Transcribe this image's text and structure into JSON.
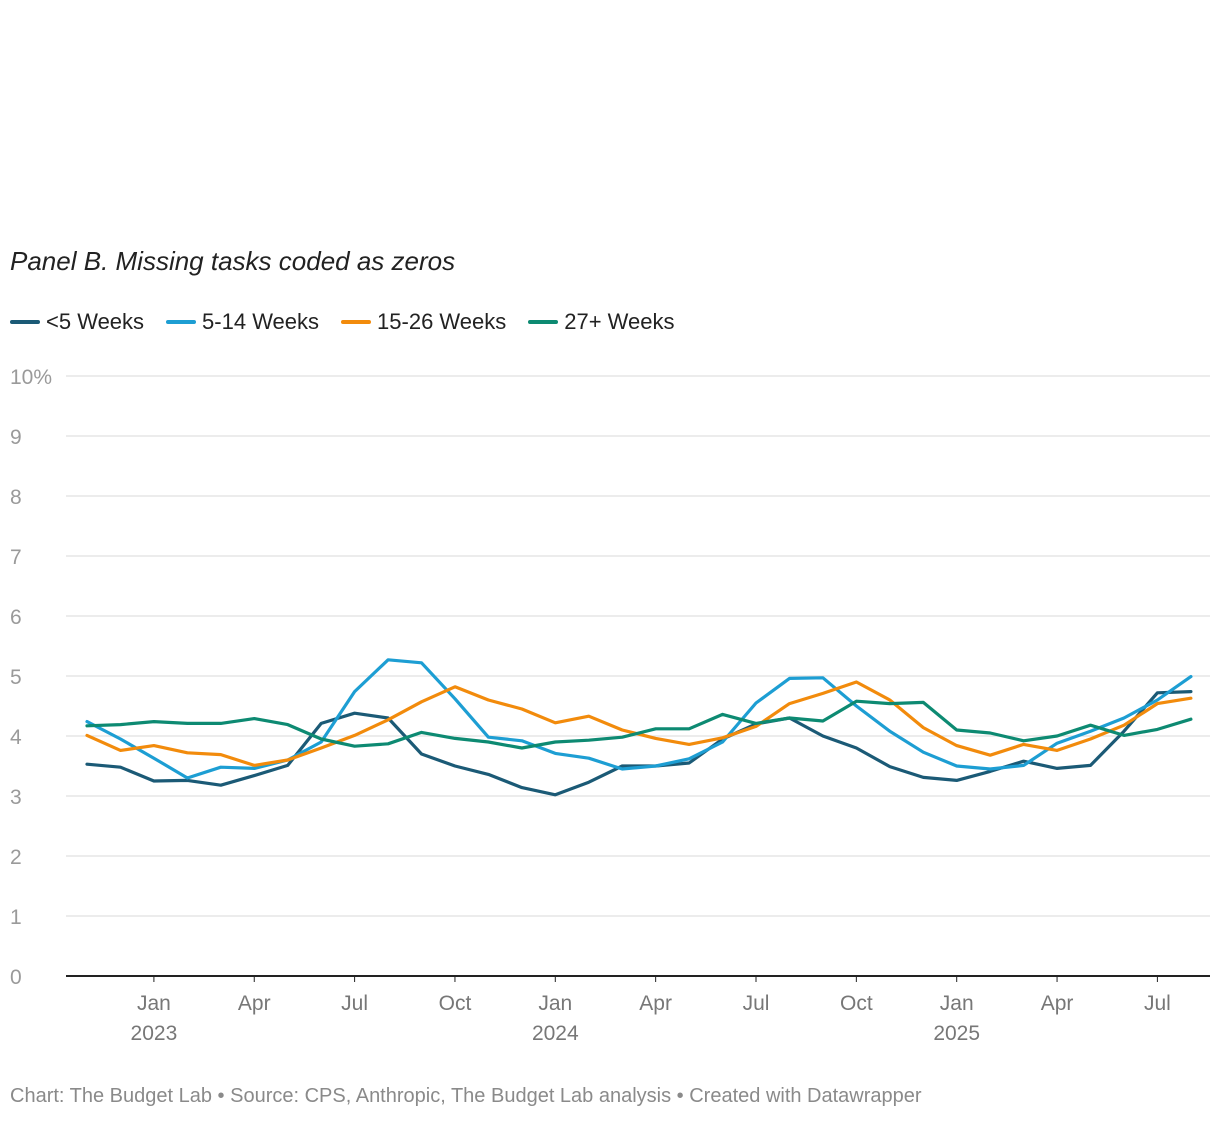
{
  "chart_data": {
    "type": "line",
    "title": "Panel B. Missing tasks coded as zeros",
    "ylabel": "",
    "xlabel": "",
    "ylim": [
      0,
      10
    ],
    "y_ticks": [
      "0",
      "1",
      "2",
      "3",
      "4",
      "5",
      "6",
      "7",
      "8",
      "9",
      "10%"
    ],
    "y_tick_values": [
      0,
      1,
      2,
      3,
      4,
      5,
      6,
      7,
      8,
      9,
      10
    ],
    "x_ticks": [
      {
        "label": "Jan",
        "year": "2023",
        "month_index": 2
      },
      {
        "label": "Apr",
        "year": "",
        "month_index": 5
      },
      {
        "label": "Jul",
        "year": "",
        "month_index": 8
      },
      {
        "label": "Oct",
        "year": "",
        "month_index": 11
      },
      {
        "label": "Jan",
        "year": "2024",
        "month_index": 14
      },
      {
        "label": "Apr",
        "year": "",
        "month_index": 17
      },
      {
        "label": "Jul",
        "year": "",
        "month_index": 20
      },
      {
        "label": "Oct",
        "year": "",
        "month_index": 23
      },
      {
        "label": "Jan",
        "year": "2025",
        "month_index": 26
      },
      {
        "label": "Apr",
        "year": "",
        "month_index": 29
      },
      {
        "label": "Jul",
        "year": "",
        "month_index": 32
      }
    ],
    "x_range": [
      0.0,
      34.0
    ],
    "x_start": "Nov 2022",
    "series": [
      {
        "name": "<5 Weeks",
        "color": "#1b5a76",
        "values": [
          3.53,
          3.48,
          3.25,
          3.26,
          3.18,
          3.34,
          3.51,
          4.21,
          4.38,
          4.3,
          3.7,
          3.5,
          3.36,
          3.14,
          3.02,
          3.23,
          3.5,
          3.5,
          3.55,
          3.95,
          4.2,
          4.3,
          4.0,
          3.8,
          3.49,
          3.31,
          3.26,
          3.41,
          3.58,
          3.46,
          3.51,
          4.08,
          4.72,
          4.74
        ]
      },
      {
        "name": "5-14 Weeks",
        "color": "#1d9ed3",
        "values": [
          4.24,
          3.95,
          3.63,
          3.3,
          3.48,
          3.46,
          3.6,
          3.9,
          4.74,
          5.27,
          5.22,
          4.62,
          3.98,
          3.92,
          3.71,
          3.63,
          3.45,
          3.5,
          3.62,
          3.9,
          4.55,
          4.96,
          4.97,
          4.5,
          4.08,
          3.73,
          3.5,
          3.45,
          3.51,
          3.88,
          4.08,
          4.3,
          4.6,
          4.99
        ]
      },
      {
        "name": "15-26 Weeks",
        "color": "#f28b0c",
        "values": [
          4.01,
          3.76,
          3.84,
          3.72,
          3.69,
          3.51,
          3.6,
          3.8,
          4.01,
          4.27,
          4.57,
          4.82,
          4.6,
          4.45,
          4.22,
          4.33,
          4.1,
          3.96,
          3.86,
          3.97,
          4.16,
          4.54,
          4.71,
          4.9,
          4.6,
          4.14,
          3.84,
          3.68,
          3.86,
          3.76,
          3.95,
          4.18,
          4.54,
          4.63
        ]
      },
      {
        "name": "27+ Weeks",
        "color": "#0d8a72",
        "values": [
          4.17,
          4.19,
          4.24,
          4.21,
          4.21,
          4.29,
          4.19,
          3.95,
          3.83,
          3.87,
          4.06,
          3.96,
          3.9,
          3.8,
          3.9,
          3.93,
          3.98,
          4.12,
          4.12,
          4.36,
          4.21,
          4.3,
          4.25,
          4.58,
          4.54,
          4.56,
          4.1,
          4.05,
          3.92,
          4.0,
          4.18,
          4.01,
          4.11,
          4.28
        ]
      }
    ],
    "source": "Chart: The Budget Lab • Source: CPS, Anthropic, The Budget Lab analysis • Created with Datawrapper"
  }
}
